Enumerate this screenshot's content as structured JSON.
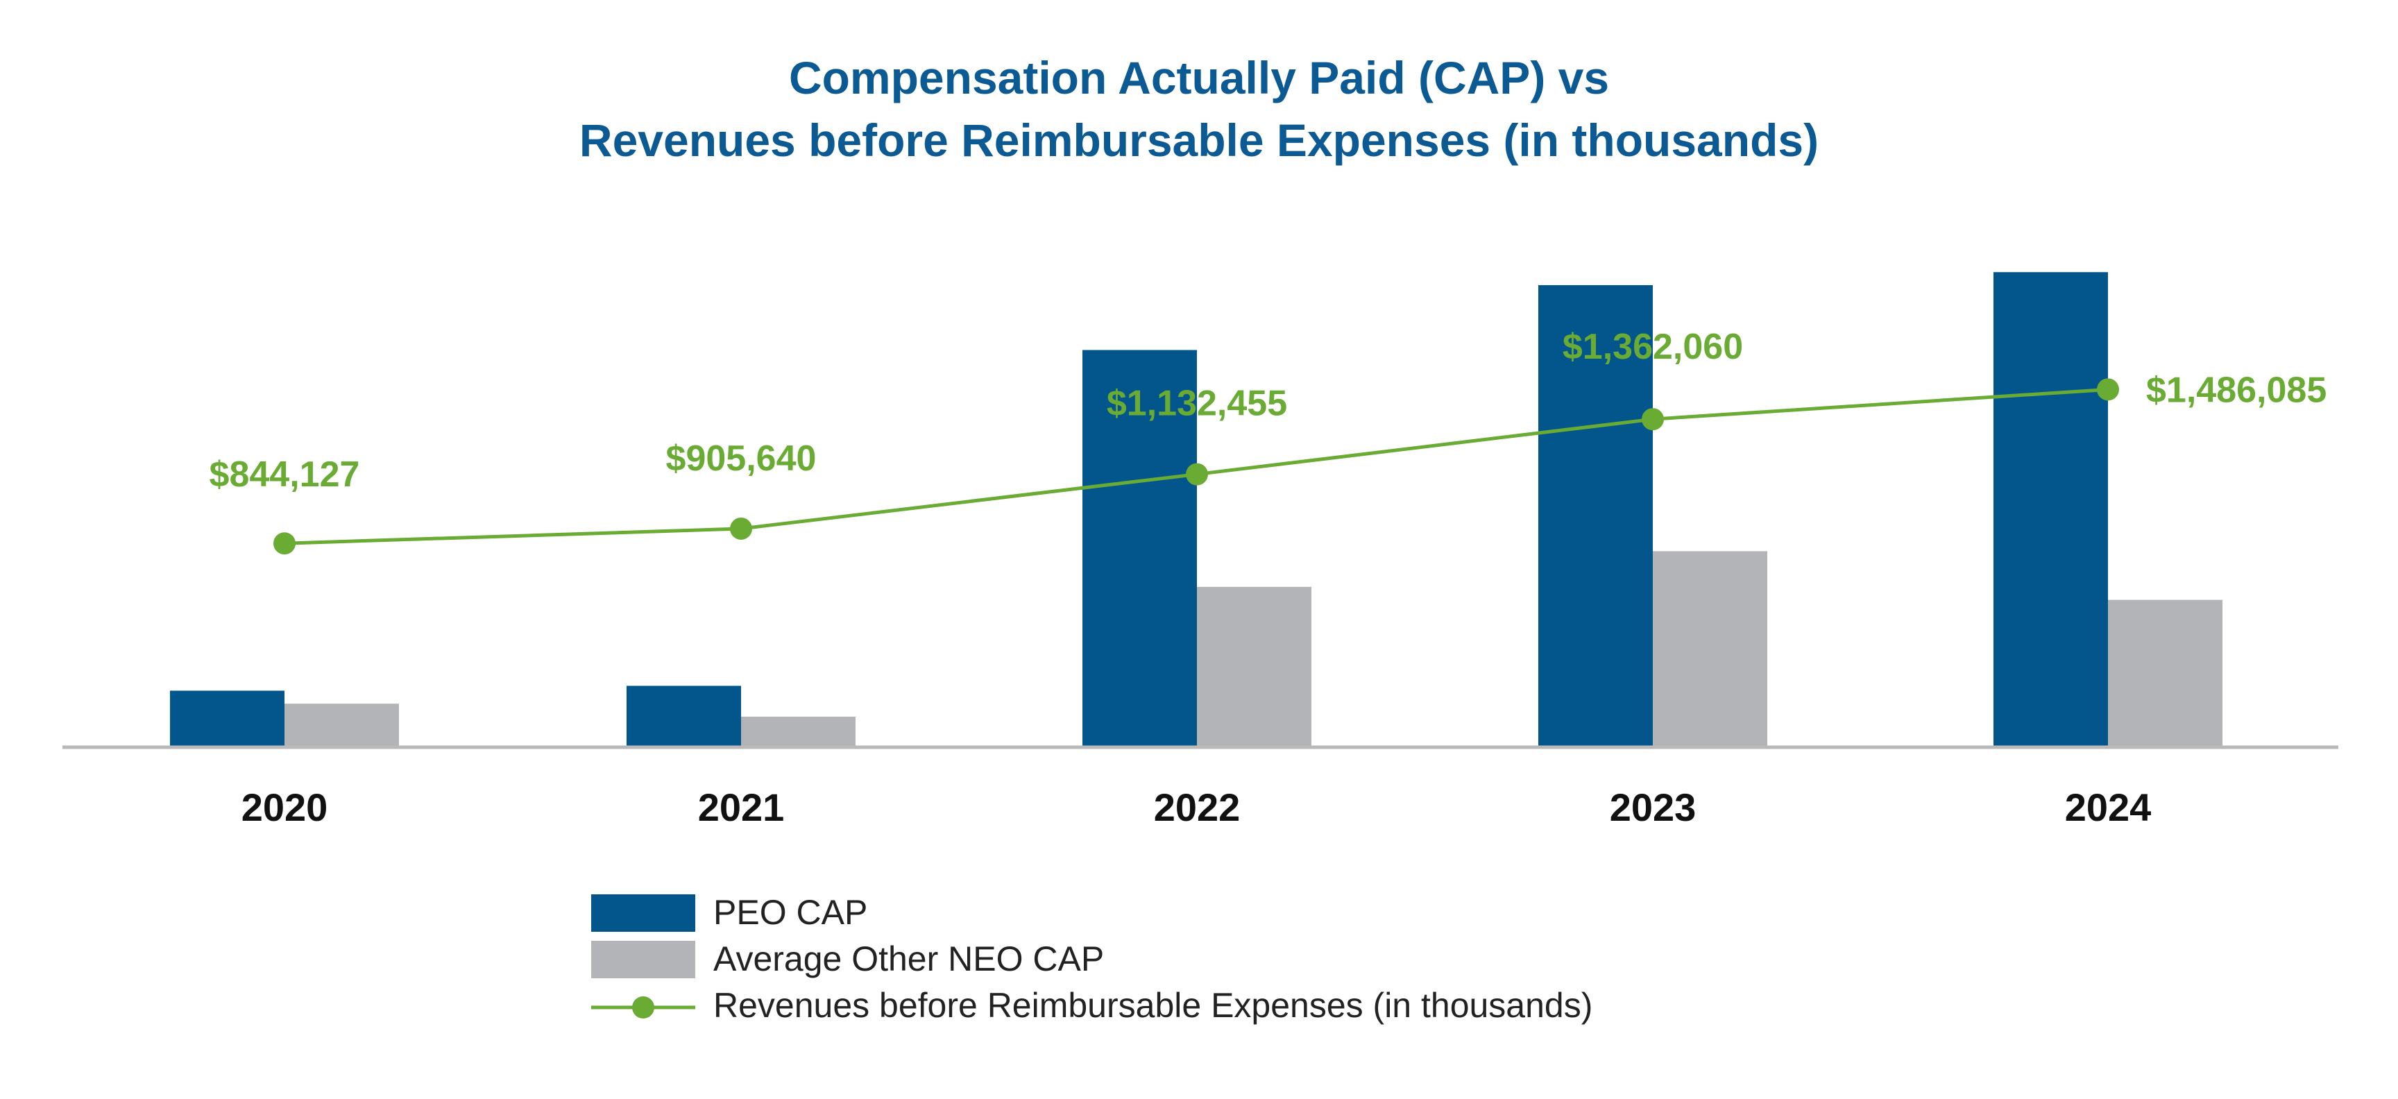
{
  "chart_data": {
    "type": "bar",
    "title_lines": [
      "Compensation Actually Paid (CAP) vs",
      "Revenues before Reimbursable Expenses (in thousands)"
    ],
    "categories": [
      "2020",
      "2021",
      "2022",
      "2023",
      "2024"
    ],
    "series": [
      {
        "name": "PEO CAP",
        "kind": "bar",
        "color": "#03568c",
        "values": [
          1.7,
          1.85,
          12.2,
          14.2,
          14.6
        ]
      },
      {
        "name": "Average Other NEO CAP",
        "kind": "bar",
        "color": "#b3b4b7",
        "values": [
          1.3,
          0.9,
          4.9,
          6.0,
          4.5
        ]
      },
      {
        "name": "Revenues before Reimbursable Expenses (in thousands)",
        "kind": "line",
        "color": "#6aab34",
        "values": [
          844127,
          905640,
          1132455,
          1362060,
          1486085
        ],
        "labels": [
          "$844,127",
          "$905,640",
          "$1,132,455",
          "$1,362,060",
          "$1,486,085"
        ]
      }
    ],
    "bar_axis_range": [
      0,
      17
    ],
    "line_axis_range": [
      0,
      2300000
    ],
    "legend_placement": "bottom-center",
    "grid": false
  }
}
